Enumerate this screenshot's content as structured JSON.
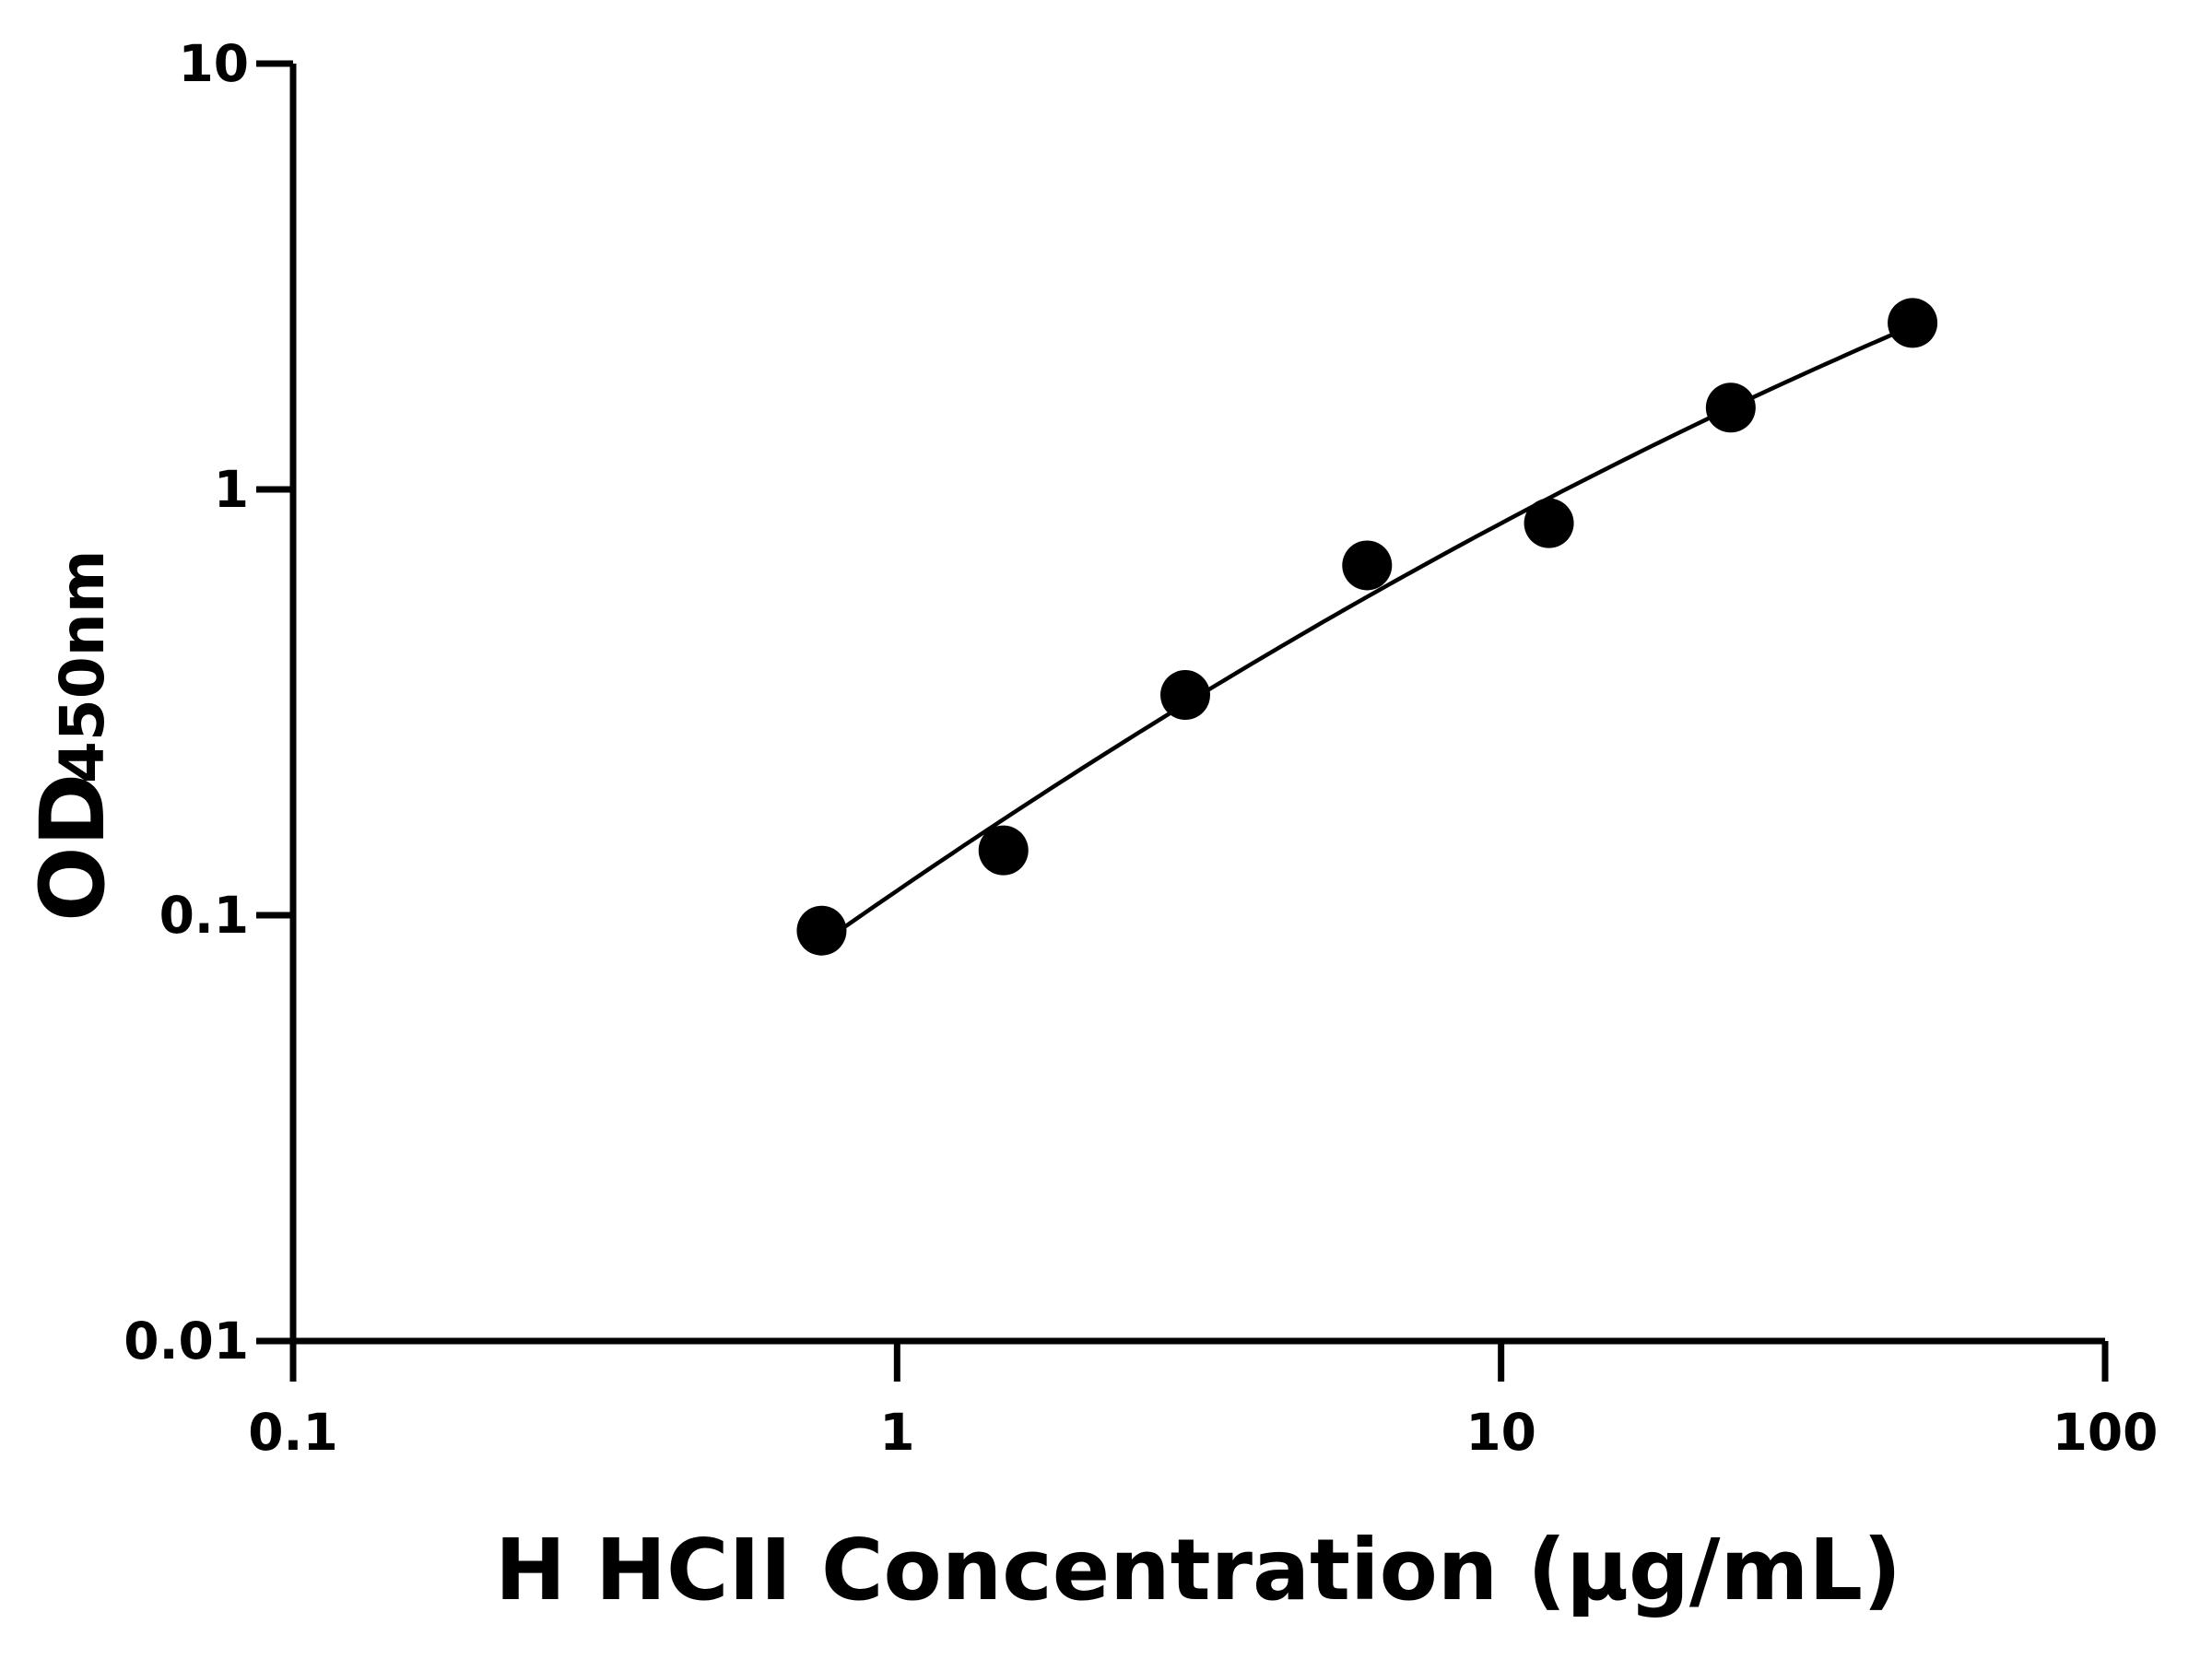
{
  "chart_data": {
    "type": "scatter",
    "xlabel": "H HCII Concentration (μg/mL)",
    "ylabel_main": "OD",
    "ylabel_sub": "450nm",
    "x_scale": "log",
    "y_scale": "log",
    "xlim": [
      0.1,
      100
    ],
    "ylim": [
      0.01,
      10
    ],
    "x_ticks": [
      0.1,
      1,
      10,
      100
    ],
    "x_tick_labels": [
      "0.1",
      "1",
      "10",
      "100"
    ],
    "y_ticks": [
      0.01,
      0.1,
      1,
      10
    ],
    "y_tick_labels": [
      "0.01",
      "0.1",
      "1",
      "10"
    ],
    "grid": false,
    "fit_curve": true,
    "marker_color": "#000000",
    "x": [
      0.75,
      1.5,
      3,
      6,
      12,
      24,
      48
    ],
    "y": [
      0.092,
      0.142,
      0.329,
      0.663,
      0.833,
      1.556,
      2.46
    ]
  }
}
